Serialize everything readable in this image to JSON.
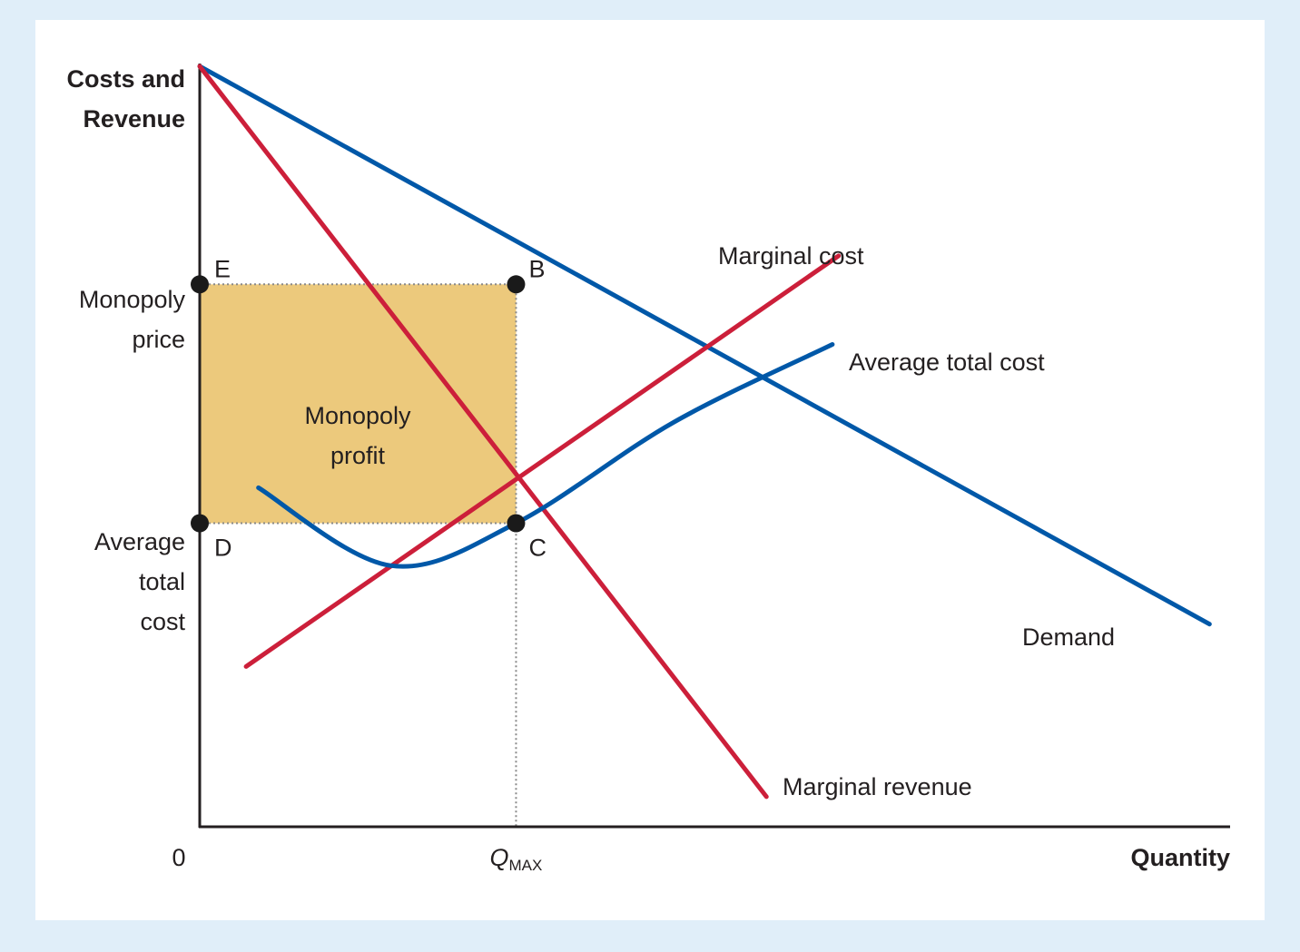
{
  "chart_data": {
    "type": "line",
    "title": "",
    "ylabel": [
      "Costs and",
      "Revenue"
    ],
    "xlabel": "Quantity",
    "xlim": [
      0,
      10
    ],
    "ylim": [
      0,
      10
    ],
    "origin_label": "0",
    "x_ticks": [
      {
        "x": 3.07,
        "label_main": "Q",
        "label_sub": "MAX"
      }
    ],
    "y_ticks": [
      {
        "y": 7.04,
        "lines": [
          "Monopoly",
          "price"
        ]
      },
      {
        "y": 3.94,
        "lines": [
          "Average",
          "total",
          "cost"
        ]
      }
    ],
    "series": [
      {
        "name": "Demand",
        "color": "#0058a8",
        "shape": "line",
        "x": [
          0,
          9.8
        ],
        "y": [
          9.87,
          2.63
        ]
      },
      {
        "name": "Marginal revenue",
        "color": "#cc1f3a",
        "shape": "line",
        "x": [
          0,
          5.5
        ],
        "y": [
          9.87,
          0.39
        ]
      },
      {
        "name": "Marginal cost",
        "color": "#cc1f3a",
        "shape": "line",
        "x": [
          0.45,
          6.2
        ],
        "y": [
          2.08,
          7.41
        ]
      },
      {
        "name": "Average total cost",
        "color": "#0058a8",
        "shape": "curve",
        "x": [
          0.57,
          1.85,
          3.07,
          4.6,
          6.14
        ],
        "y": [
          4.4,
          3.39,
          3.94,
          5.25,
          6.26
        ]
      }
    ],
    "points": [
      {
        "label": "E",
        "x": 0,
        "y": 7.04
      },
      {
        "label": "B",
        "x": 3.07,
        "y": 7.04
      },
      {
        "label": "D",
        "x": 0,
        "y": 3.94
      },
      {
        "label": "C",
        "x": 3.07,
        "y": 3.94
      }
    ],
    "shaded_region": {
      "label": [
        "Monopoly",
        "profit"
      ],
      "x": [
        0,
        3.07
      ],
      "y": [
        3.94,
        7.04
      ],
      "color": "#ecc97c"
    },
    "axis_color": "#231f20"
  }
}
